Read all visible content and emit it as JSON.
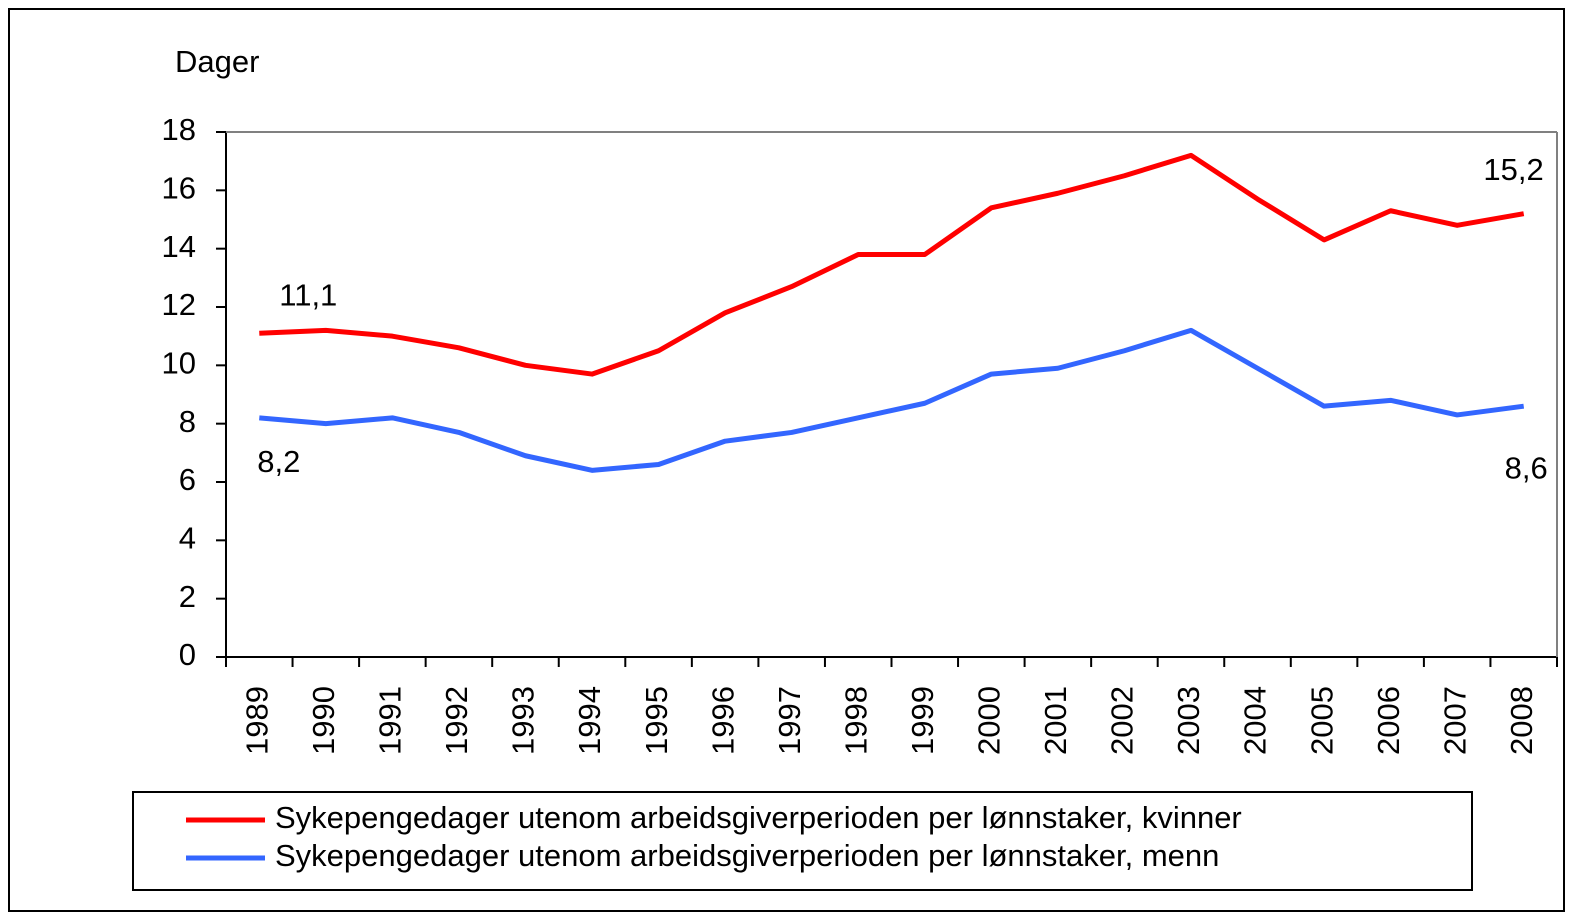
{
  "chart_data": {
    "type": "line",
    "y_label": "Dager",
    "categories": [
      "1989",
      "1990",
      "1991",
      "1992",
      "1993",
      "1994",
      "1995",
      "1996",
      "1997",
      "1998",
      "1999",
      "2000",
      "2001",
      "2002",
      "2003",
      "2004",
      "2005",
      "2006",
      "2007",
      "2008"
    ],
    "series": [
      {
        "name": "Sykepengedager utenom arbeidsgiverperioden per lønnstaker, kvinner",
        "color": "#ff0000",
        "values": [
          11.1,
          11.2,
          11.0,
          10.6,
          10.0,
          9.7,
          10.5,
          11.8,
          12.7,
          13.8,
          13.8,
          15.4,
          15.9,
          16.5,
          17.2,
          15.7,
          14.3,
          15.3,
          14.8,
          15.2
        ],
        "value_labels": [
          "11,1",
          null,
          null,
          null,
          null,
          null,
          null,
          null,
          null,
          null,
          null,
          null,
          null,
          null,
          null,
          null,
          null,
          null,
          null,
          "15,2"
        ]
      },
      {
        "name": "Sykepengedager utenom arbeidsgiverperioden per lønnstaker, menn",
        "color": "#3366ff",
        "values": [
          8.2,
          8.0,
          8.2,
          7.7,
          6.9,
          6.4,
          6.6,
          7.4,
          7.7,
          8.2,
          8.7,
          9.7,
          9.9,
          10.5,
          11.2,
          9.9,
          8.6,
          8.8,
          8.3,
          8.6
        ],
        "value_labels": [
          "8,2",
          null,
          null,
          null,
          null,
          null,
          null,
          null,
          null,
          null,
          null,
          null,
          null,
          null,
          null,
          null,
          null,
          null,
          null,
          "8,6"
        ]
      }
    ],
    "ylim": [
      0,
      18
    ],
    "yticks": [
      0,
      2,
      4,
      6,
      8,
      10,
      12,
      14,
      16,
      18
    ],
    "grid": false
  }
}
